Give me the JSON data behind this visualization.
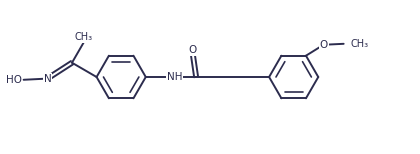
{
  "bg_color": "#ffffff",
  "line_color": "#2c2c4e",
  "line_width": 1.4,
  "text_color": "#2c2c4e",
  "font_size": 7.5,
  "figsize": [
    4.2,
    1.54
  ],
  "dpi": 100,
  "xlim": [
    0.0,
    10.5
  ],
  "ylim": [
    0.2,
    4.0
  ]
}
